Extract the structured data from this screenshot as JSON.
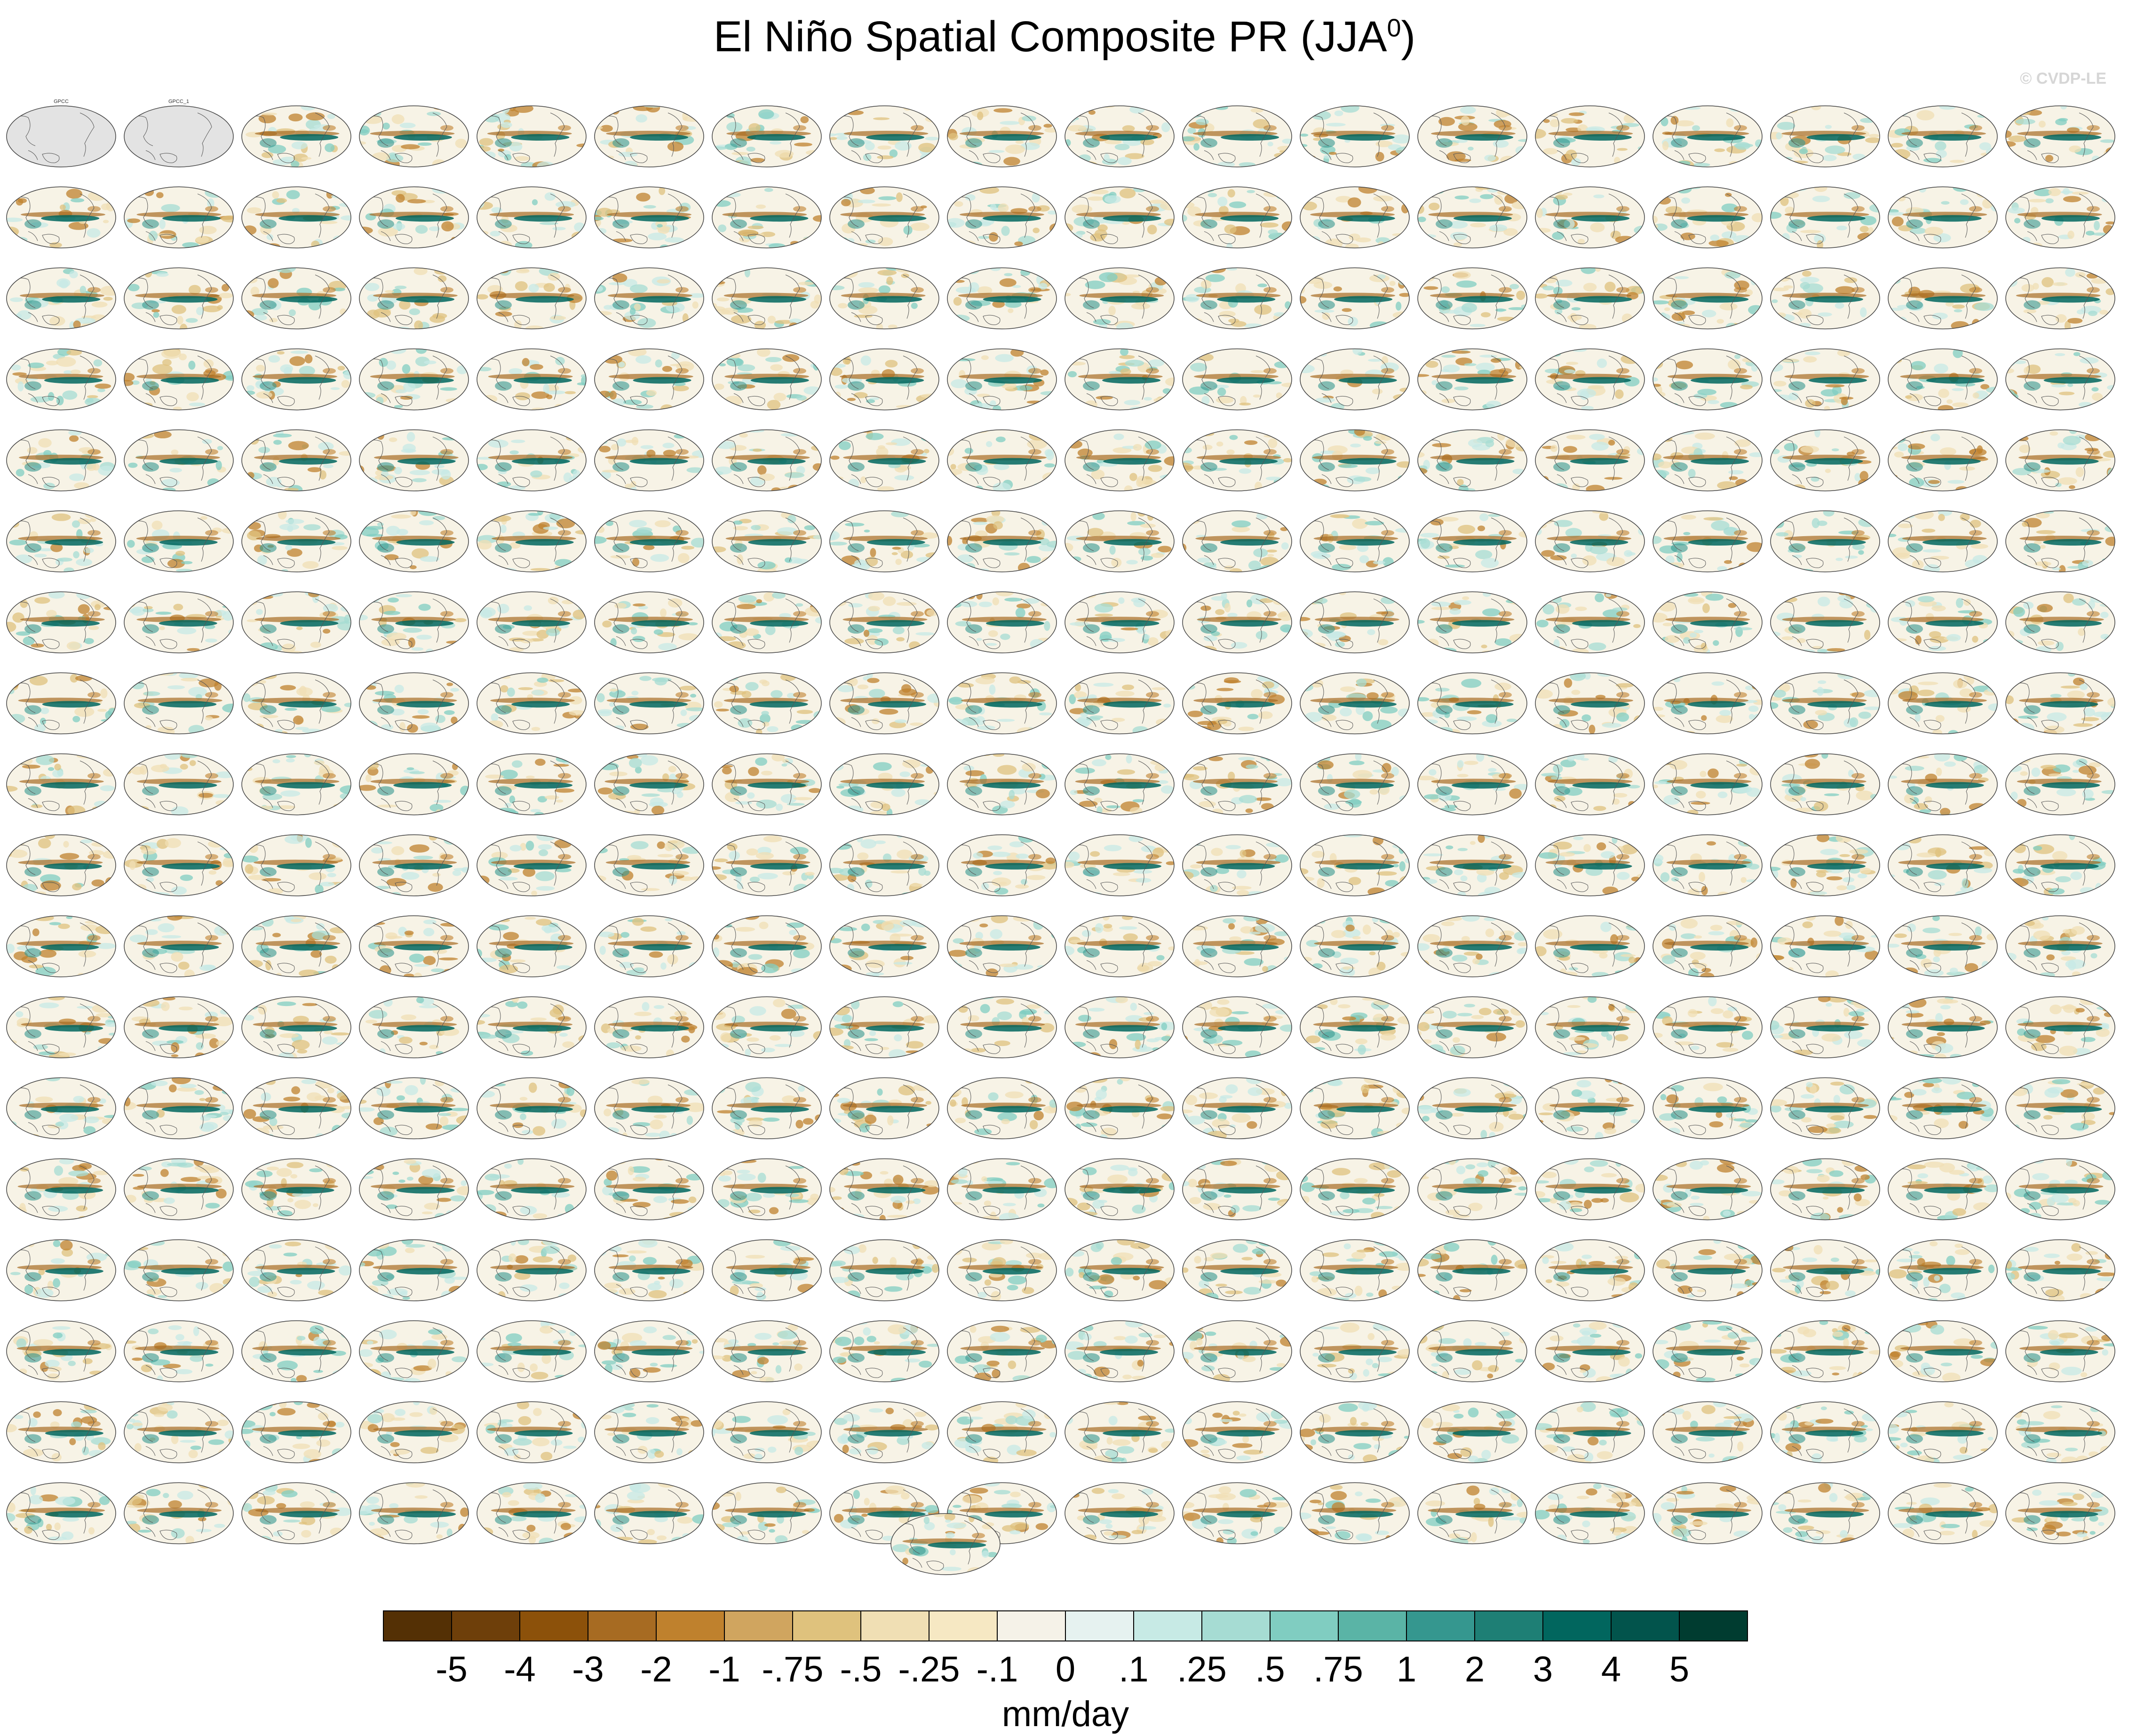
{
  "title": "El Niño Spatial Composite PR (JJA",
  "title_superscript": "0",
  "title_suffix": ")",
  "watermark": "© CVDP-LE",
  "chart_data": {
    "type": "heatmap",
    "title": "El Niño Spatial Composite PR (JJA0)",
    "variable": "PR",
    "season": "JJA0",
    "rows": 18,
    "cols": 18,
    "extra_panels_below": 1,
    "panels": [
      {
        "label": "GPCC",
        "row": 0,
        "col": 0,
        "missing": true
      },
      {
        "label": "GPCC_1",
        "row": 0,
        "col": 1,
        "missing": true
      }
    ],
    "colorbar": {
      "unit_label": "mm/day",
      "tick_labels": [
        "-5",
        "-4",
        "-3",
        "-2",
        "-1",
        "-.75",
        "-.5",
        "-.25",
        "-.1",
        "0",
        ".1",
        ".25",
        ".5",
        ".75",
        "1",
        "2",
        "3",
        "4",
        "5"
      ],
      "levels": [
        -5,
        -4,
        -3,
        -2,
        -1,
        -0.75,
        -0.5,
        -0.25,
        -0.1,
        0,
        0.1,
        0.25,
        0.5,
        0.75,
        1,
        2,
        3,
        4,
        5
      ],
      "colors": [
        "#543005",
        "#6e3f0a",
        "#8c510a",
        "#a76b22",
        "#bf812d",
        "#d0a55f",
        "#dfc27d",
        "#f0dfb4",
        "#f6e8c3",
        "#f5f2e8",
        "#e6f2f0",
        "#c7eae5",
        "#a6dcd3",
        "#80cdc1",
        "#5ab4a6",
        "#35978f",
        "#1e7f75",
        "#01665e",
        "#02544c",
        "#003c30"
      ]
    }
  }
}
